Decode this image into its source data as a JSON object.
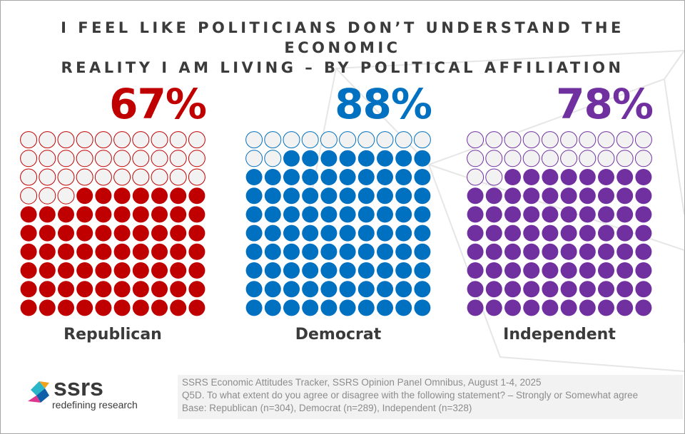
{
  "title": {
    "line1": "I FEEL LIKE POLITICIANS DON’T UNDERSTAND THE ECONOMIC",
    "line2": "REALITY I AM LIVING – BY POLITICAL AFFILIATION"
  },
  "chart_data": {
    "type": "waffle",
    "title": "I FEEL LIKE POLITICIANS DON’T UNDERSTAND THE ECONOMIC REALITY I AM LIVING – BY POLITICAL AFFILIATION",
    "grid": {
      "rows": 10,
      "cols": 10
    },
    "unit": "%",
    "series": [
      {
        "name": "Republican",
        "value": 67,
        "label": "67%",
        "color": "#c00000"
      },
      {
        "name": "Democrat",
        "value": 88,
        "label": "88%",
        "color": "#0070c0"
      },
      {
        "name": "Independent",
        "value": 78,
        "label": "78%",
        "color": "#7030a0"
      }
    ],
    "empty_fill": "#f2f2f2"
  },
  "logo": {
    "name": "ssrs",
    "tagline": "redefining research",
    "colors": [
      "#2bb5c8",
      "#0f5ea8",
      "#e0368f",
      "#f2a31b"
    ]
  },
  "footer": {
    "source": "SSRS Economic Attitudes Tracker, SSRS Opinion Panel Omnibus, August 1-4, 2025",
    "question": "Q5D. To what extent do you agree or disagree with the following statement? – Strongly or Somewhat agree",
    "base": "Base: Republican (n=304), Democrat (n=289), Independent (n=328)"
  },
  "colors": {
    "text": "#3b3b3b",
    "footer_text": "#8c8c8c",
    "footer_bg": "#f2f2f2"
  }
}
